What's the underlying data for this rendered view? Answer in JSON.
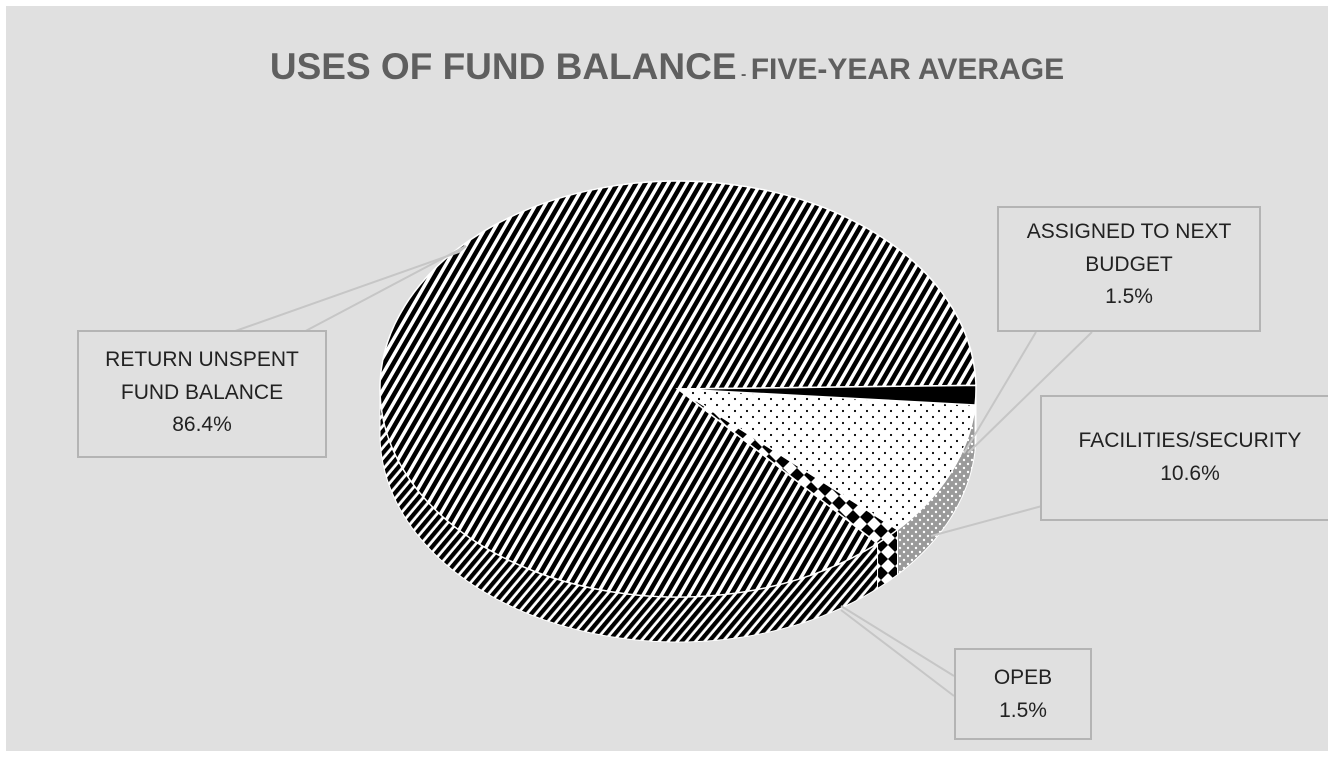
{
  "chart_data": {
    "type": "pie",
    "title": "USES OF FUND BALANCE",
    "title_separator": "-",
    "subtitle": "FIVE-YEAR AVERAGE",
    "slices": [
      {
        "label": "RETURN UNSPENT FUND BALANCE",
        "value": 86.4,
        "value_label": "86.4%",
        "pattern": "diagonal-stripes",
        "color": "#000000"
      },
      {
        "label": "ASSIGNED TO NEXT BUDGET",
        "value": 1.5,
        "value_label": "1.5%",
        "pattern": "diamond-checker",
        "color": "#000000"
      },
      {
        "label": "FACILITIES/SECURITY",
        "value": 10.6,
        "value_label": "10.6%",
        "pattern": "dots",
        "color": "#ffffff"
      },
      {
        "label": "OPEB",
        "value": 1.5,
        "value_label": "1.5%",
        "pattern": "solid",
        "color": "#000000"
      }
    ],
    "legend": "none",
    "label_style": "callout boxes with leader lines"
  }
}
